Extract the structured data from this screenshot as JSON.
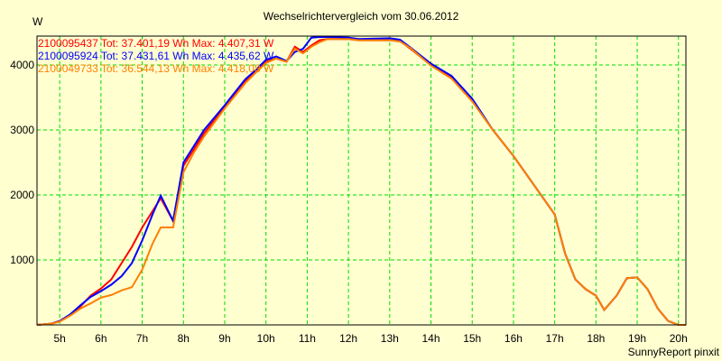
{
  "chart_data": {
    "type": "line",
    "title": "Wechselrichtervergleich vom 30.06.2012",
    "ylabel": "W",
    "xlabel": "",
    "footer": "SunnyReport pinxit",
    "xlim": [
      4.45,
      20.18
    ],
    "ylim": [
      0,
      4444
    ],
    "grid": true,
    "legend_position": "top-left",
    "x_ticks": [
      5,
      6,
      7,
      8,
      9,
      10,
      11,
      12,
      13,
      14,
      15,
      16,
      17,
      18,
      19,
      20
    ],
    "x_tick_labels": [
      "5h",
      "6h",
      "7h",
      "8h",
      "9h",
      "10h",
      "11h",
      "12h",
      "13h",
      "14h",
      "15h",
      "16h",
      "17h",
      "18h",
      "19h",
      "20h"
    ],
    "y_ticks": [
      1000,
      2000,
      3000,
      4000
    ],
    "y_tick_labels": [
      "1000",
      "2000",
      "3000",
      "4000"
    ],
    "series": [
      {
        "name": "2100095437",
        "legend": "2100095437 Tot: 37.401,19 Wh Max: 4.407,31 W",
        "color": "#ff0000",
        "x": [
          4.45,
          4.8,
          5,
          5.25,
          5.5,
          5.75,
          6,
          6.25,
          6.5,
          6.75,
          7,
          7.25,
          7.45,
          7.75,
          8,
          8.25,
          8.5,
          9,
          9.5,
          9.75,
          10,
          10.25,
          10.5,
          10.7,
          10.9,
          11.1,
          11.3,
          11.5,
          12,
          12.25,
          13,
          13.25,
          13.5,
          14,
          14.5,
          15,
          15.5,
          16,
          16.5,
          17,
          17.25,
          17.5,
          17.75,
          18,
          18.2,
          18.5,
          18.75,
          19,
          19.25,
          19.5,
          19.75,
          20,
          20.18
        ],
        "y": [
          0,
          20,
          60,
          150,
          280,
          450,
          560,
          700,
          950,
          1200,
          1500,
          1750,
          1950,
          1600,
          2450,
          2700,
          2950,
          3350,
          3750,
          3900,
          4050,
          4100,
          4050,
          4280,
          4200,
          4300,
          4380,
          4400,
          4400,
          4380,
          4380,
          4370,
          4250,
          4000,
          3800,
          3450,
          3000,
          2600,
          2150,
          1700,
          1100,
          700,
          550,
          450,
          230,
          450,
          720,
          730,
          550,
          250,
          60,
          0,
          0
        ]
      },
      {
        "name": "2100095924",
        "legend": "2100095924 Tot: 37.431,61 Wh Max: 4.435,62 W",
        "color": "#0000ff",
        "x": [
          4.45,
          4.8,
          5,
          5.25,
          5.5,
          5.75,
          6,
          6.25,
          6.5,
          6.75,
          7,
          7.25,
          7.45,
          7.75,
          8,
          8.25,
          8.5,
          9,
          9.5,
          9.75,
          10,
          10.25,
          10.5,
          10.7,
          10.9,
          11.1,
          11.3,
          11.5,
          12,
          12.25,
          13,
          13.25,
          13.5,
          14,
          14.5,
          15,
          15.5,
          16,
          16.5,
          17,
          17.25,
          17.5,
          17.75,
          18,
          18.2,
          18.5,
          18.75,
          19,
          19.25,
          19.5,
          19.75,
          20,
          20.18
        ],
        "y": [
          0,
          20,
          60,
          160,
          300,
          430,
          520,
          620,
          750,
          950,
          1300,
          1700,
          1990,
          1600,
          2500,
          2750,
          3000,
          3380,
          3780,
          3920,
          4080,
          4130,
          4060,
          4200,
          4250,
          4420,
          4430,
          4430,
          4420,
          4400,
          4410,
          4390,
          4270,
          4020,
          3830,
          3480,
          3000,
          2600,
          2150,
          1700,
          1100,
          700,
          550,
          450,
          230,
          450,
          720,
          730,
          550,
          250,
          60,
          0,
          0
        ]
      },
      {
        "name": "2100049733",
        "legend": "2100049733 Tot: 36.544,13 Wh Max: 4.418,08 W",
        "color": "#ff8000",
        "x": [
          4.45,
          4.8,
          5,
          5.25,
          5.5,
          5.75,
          6,
          6.25,
          6.5,
          6.75,
          7,
          7.25,
          7.45,
          7.75,
          8,
          8.25,
          8.5,
          9,
          9.5,
          9.75,
          10,
          10.25,
          10.5,
          10.7,
          10.9,
          11.1,
          11.3,
          11.5,
          12,
          12.25,
          13,
          13.25,
          13.5,
          14,
          14.5,
          15,
          15.5,
          16,
          16.5,
          17,
          17.25,
          17.5,
          17.75,
          18,
          18.2,
          18.5,
          18.75,
          19,
          19.25,
          19.5,
          19.75,
          20,
          20.18
        ],
        "y": [
          0,
          20,
          50,
          140,
          250,
          330,
          420,
          460,
          530,
          580,
          850,
          1250,
          1500,
          1500,
          2350,
          2650,
          2900,
          3330,
          3720,
          3880,
          4030,
          4100,
          4050,
          4250,
          4180,
          4280,
          4350,
          4400,
          4400,
          4380,
          4380,
          4360,
          4260,
          3990,
          3790,
          3440,
          3000,
          2600,
          2150,
          1700,
          1100,
          700,
          550,
          450,
          230,
          450,
          720,
          730,
          550,
          250,
          60,
          0,
          0
        ]
      }
    ]
  }
}
